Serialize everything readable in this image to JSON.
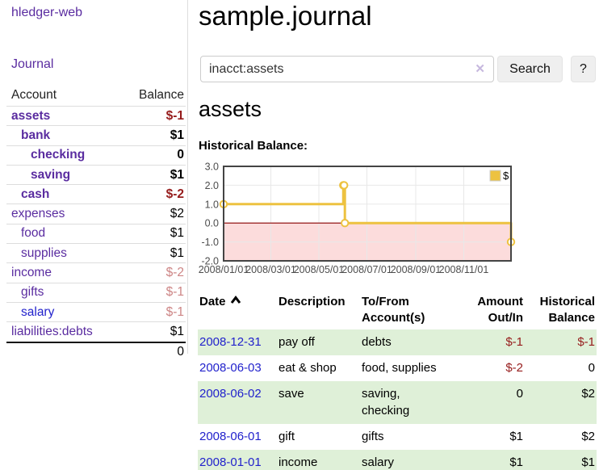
{
  "sidebar": {
    "app_title": "hledger-web",
    "nav_journal": "Journal",
    "accounts_table": {
      "headers": [
        "Account",
        "Balance"
      ],
      "rows": [
        {
          "name": "assets",
          "indent": 0,
          "balance": "$-1",
          "emph": true
        },
        {
          "name": "bank",
          "indent": 1,
          "balance": "$1",
          "emph": true
        },
        {
          "name": "checking",
          "indent": 2,
          "balance": "0",
          "emph": true
        },
        {
          "name": "saving",
          "indent": 2,
          "balance": "$1",
          "emph": true
        },
        {
          "name": "cash",
          "indent": 1,
          "balance": "$-2",
          "emph": true
        },
        {
          "name": "expenses",
          "indent": 0,
          "balance": "$2",
          "emph": false
        },
        {
          "name": "food",
          "indent": 1,
          "balance": "$1",
          "emph": false
        },
        {
          "name": "supplies",
          "indent": 1,
          "balance": "$1",
          "emph": false
        },
        {
          "name": "income",
          "indent": 0,
          "balance": "$-2",
          "emph": false
        },
        {
          "name": "gifts",
          "indent": 1,
          "balance": "$-1",
          "emph": false
        },
        {
          "name": "salary",
          "indent": 1,
          "balance": "$-1",
          "emph": false,
          "unvisited": true
        },
        {
          "name": "liabilities:debts",
          "indent": 0,
          "balance": "$1",
          "emph": false
        }
      ],
      "total": "0"
    }
  },
  "main": {
    "title": "sample.journal",
    "search": {
      "value": "inacct:assets",
      "clear_icon": "✕",
      "search_button": "Search",
      "help_button": "?"
    },
    "account_heading": "assets",
    "chart_title": "Historical Balance:",
    "register": {
      "headers": [
        "Date",
        "Description",
        "To/From Account(s)",
        "Amount Out/In",
        "Historical Balance"
      ],
      "rows": [
        {
          "date": "2008-12-31",
          "description": "pay off",
          "accounts": "debts",
          "amount": "$-1",
          "balance": "$-1"
        },
        {
          "date": "2008-06-03",
          "description": "eat & shop",
          "accounts": "food, supplies",
          "amount": "$-2",
          "balance": "0"
        },
        {
          "date": "2008-06-02",
          "description": "save",
          "accounts": "saving,\nchecking",
          "amount": "0",
          "balance": "$2"
        },
        {
          "date": "2008-06-01",
          "description": "gift",
          "accounts": "gifts",
          "amount": "$1",
          "balance": "$2"
        },
        {
          "date": "2008-01-01",
          "description": "income",
          "accounts": "salary",
          "amount": "$1",
          "balance": "$1"
        }
      ]
    }
  },
  "chart_data": {
    "type": "line",
    "style": "step",
    "title": "Historical Balance",
    "legend": [
      {
        "label": "$",
        "color": "#edc240"
      }
    ],
    "legend_position": "top-right",
    "grid": true,
    "x_range": [
      "2008/01/01",
      "2008/12/31"
    ],
    "ylim": [
      -2.0,
      3.0
    ],
    "yticks": [
      3,
      2,
      1,
      0,
      -1,
      -2
    ],
    "xticks": [
      "2008/01/01",
      "2008/03/01",
      "2008/05/01",
      "2008/07/01",
      "2008/09/01",
      "2008/11/01"
    ],
    "points": [
      {
        "x": "2008/01/01",
        "y": 1
      },
      {
        "x": "2008/06/01",
        "y": 2
      },
      {
        "x": "2008/06/02",
        "y": 2
      },
      {
        "x": "2008/06/03",
        "y": 0
      },
      {
        "x": "2008/12/31",
        "y": -1
      }
    ],
    "colors": {
      "line": "#edc240",
      "marker_fill": "#ffffff",
      "below_zero_fill": "#fcdcdc",
      "zero_line": "#8b0000",
      "grid": "#e8e8e8",
      "border": "#444444",
      "tick_text": "#4d4d4d"
    }
  }
}
